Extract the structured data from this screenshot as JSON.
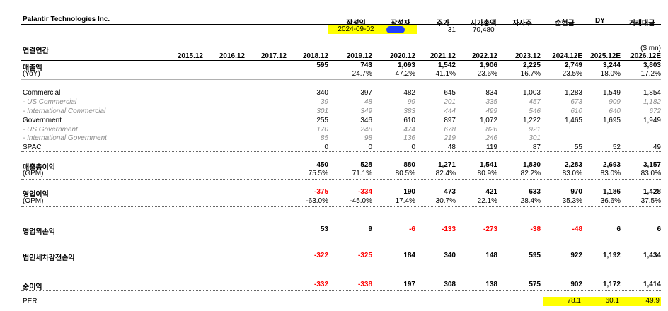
{
  "company": "Palantir Technologies Inc.",
  "header": {
    "labels": [
      "작성일",
      "작성자",
      "주가",
      "시가총액",
      "자사주",
      "순현금",
      "DY",
      "거래대금"
    ],
    "date": "2024-09-02",
    "price": "31",
    "market_cap": "70,480"
  },
  "section_title": "연결연간",
  "unit": "($ mn)",
  "years": [
    "2015.12",
    "2016.12",
    "2017.12",
    "2018.12",
    "2019.12",
    "2020.12",
    "2021.12",
    "2022.12",
    "2023.12",
    "2024.12E",
    "2025.12E",
    "2026.12E"
  ],
  "rows": [
    {
      "label": "매출액",
      "values": [
        "",
        "",
        "",
        "595",
        "743",
        "1,093",
        "1,542",
        "1,906",
        "2,225",
        "2,749",
        "3,244",
        "3,803"
      ]
    },
    {
      "label": "(YoY)",
      "values": [
        "",
        "",
        "",
        "",
        "24.7%",
        "47.2%",
        "41.1%",
        "23.6%",
        "16.7%",
        "23.5%",
        "18.0%",
        "17.2%"
      ]
    },
    {
      "label": "Commercial",
      "values": [
        "",
        "",
        "",
        "340",
        "397",
        "482",
        "645",
        "834",
        "1,003",
        "1,283",
        "1,549",
        "1,854"
      ]
    },
    {
      "label": "- US Commercial",
      "values": [
        "",
        "",
        "",
        "39",
        "48",
        "99",
        "201",
        "335",
        "457",
        "673",
        "909",
        "1,182"
      ]
    },
    {
      "label": "- International Commercial",
      "values": [
        "",
        "",
        "",
        "301",
        "349",
        "383",
        "444",
        "499",
        "546",
        "610",
        "640",
        "672"
      ]
    },
    {
      "label": "Government",
      "values": [
        "",
        "",
        "",
        "255",
        "346",
        "610",
        "897",
        "1,072",
        "1,222",
        "1,465",
        "1,695",
        "1,949"
      ]
    },
    {
      "label": "- US Government",
      "values": [
        "",
        "",
        "",
        "170",
        "248",
        "474",
        "678",
        "826",
        "921",
        "",
        "",
        ""
      ]
    },
    {
      "label": "- International Government",
      "values": [
        "",
        "",
        "",
        "85",
        "98",
        "136",
        "219",
        "246",
        "301",
        "",
        "",
        ""
      ]
    },
    {
      "label": "SPAC",
      "values": [
        "",
        "",
        "",
        "0",
        "0",
        "0",
        "48",
        "119",
        "87",
        "55",
        "52",
        "49"
      ]
    },
    {
      "label": "매출총이익",
      "values": [
        "",
        "",
        "",
        "450",
        "528",
        "880",
        "1,271",
        "1,541",
        "1,830",
        "2,283",
        "2,693",
        "3,157"
      ]
    },
    {
      "label": "(GPM)",
      "values": [
        "",
        "",
        "",
        "75.5%",
        "71.1%",
        "80.5%",
        "82.4%",
        "80.9%",
        "82.2%",
        "83.0%",
        "83.0%",
        "83.0%"
      ]
    },
    {
      "label": "영업이익",
      "values": [
        "",
        "",
        "",
        "-375",
        "-334",
        "190",
        "473",
        "421",
        "633",
        "970",
        "1,186",
        "1,428"
      ]
    },
    {
      "label": "(OPM)",
      "values": [
        "",
        "",
        "",
        "-63.0%",
        "-45.0%",
        "17.4%",
        "30.7%",
        "22.1%",
        "28.4%",
        "35.3%",
        "36.6%",
        "37.5%"
      ]
    },
    {
      "label": "영업외손익",
      "values": [
        "",
        "",
        "",
        "53",
        "9",
        "-6",
        "-133",
        "-273",
        "-38",
        "-48",
        "6",
        "6"
      ]
    },
    {
      "label": "법인세차감전손익",
      "values": [
        "",
        "",
        "",
        "-322",
        "-325",
        "184",
        "340",
        "148",
        "595",
        "922",
        "1,192",
        "1,434"
      ]
    },
    {
      "label": "순이익",
      "values": [
        "",
        "",
        "",
        "-332",
        "-338",
        "197",
        "308",
        "138",
        "575",
        "902",
        "1,172",
        "1,414"
      ]
    },
    {
      "label": "PER",
      "values": [
        "",
        "",
        "",
        "",
        "",
        "",
        "",
        "",
        "",
        "78.1",
        "60.1",
        "49.9"
      ]
    }
  ]
}
